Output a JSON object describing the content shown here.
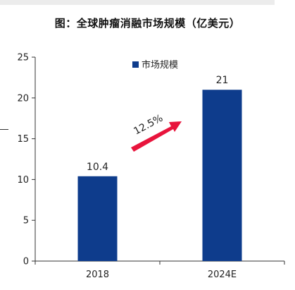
{
  "chart_data": {
    "type": "bar",
    "title": "图：全球肿瘤消融市场规模（亿美元）",
    "categories": [
      "2018",
      "2024E"
    ],
    "series": [
      {
        "name": "市场规模",
        "values": [
          10.4,
          21
        ],
        "color": "#0e3c8c"
      }
    ],
    "data_labels": [
      "10.4",
      "21"
    ],
    "yticks": [
      0,
      5,
      10,
      15,
      20,
      25
    ],
    "ylim": [
      0,
      25
    ],
    "grid": false,
    "legend": "top",
    "annotation": {
      "text": "12.5%",
      "arrow_color": "#e8143c"
    }
  }
}
